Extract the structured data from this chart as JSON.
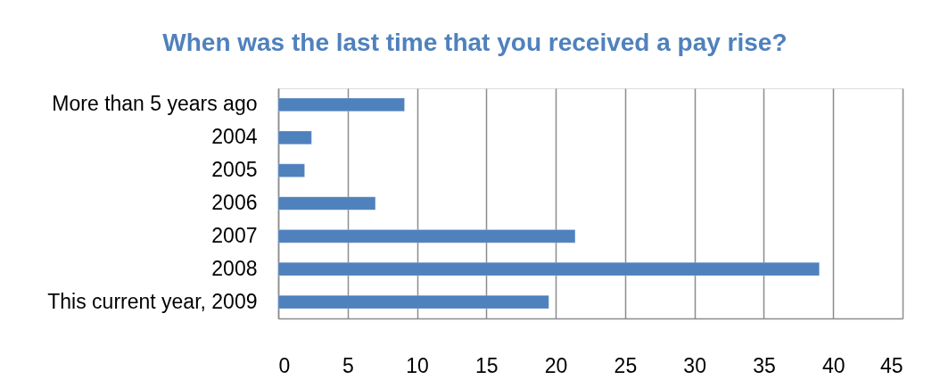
{
  "chart_data": {
    "type": "bar",
    "orientation": "horizontal",
    "title": "When was the last time that you received a pay rise?",
    "categories": [
      "More than 5 years ago",
      "2004",
      "2005",
      "2006",
      "2007",
      "2008",
      "This current year, 2009"
    ],
    "series": [
      {
        "color": "#4f81bd",
        "values": [
          9.1,
          2.4,
          1.9,
          7.0,
          21.4,
          39.0,
          19.5
        ]
      }
    ],
    "xlim": [
      0,
      45
    ],
    "xticks": [
      0,
      5,
      10,
      15,
      20,
      25,
      30,
      35,
      40,
      45
    ],
    "grid": "x"
  }
}
